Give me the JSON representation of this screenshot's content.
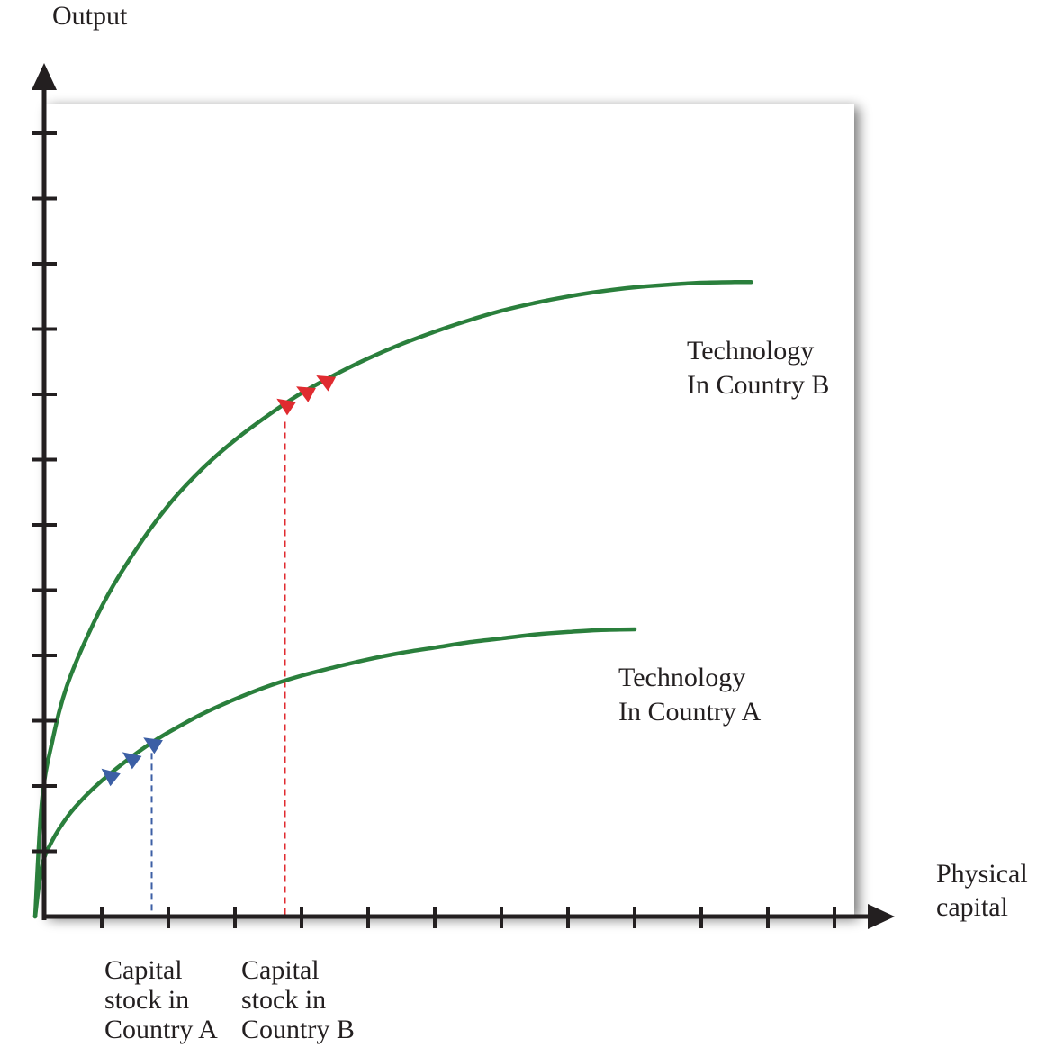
{
  "chart_data": {
    "type": "line",
    "title": "",
    "ylabel": "Output",
    "xlabel": [
      "Physical",
      "capital"
    ],
    "xlim": [
      0,
      12
    ],
    "ylim": [
      0,
      12.5
    ],
    "x_ticks": [
      1,
      2,
      3,
      4,
      5,
      6,
      7,
      8,
      9,
      10,
      11,
      12
    ],
    "y_ticks": [
      1,
      2,
      3,
      4,
      5,
      6,
      7,
      8,
      9,
      10,
      11,
      12
    ],
    "grid": false,
    "series": [
      {
        "name": "Technology In Country A",
        "label_lines": [
          "Technology",
          "In Country A"
        ],
        "color": "#2a7f3c",
        "x": [
          0,
          0.1,
          0.25,
          0.5,
          0.75,
          1,
          1.35,
          1.7,
          2,
          2.5,
          3,
          3.5,
          4,
          4.5,
          5,
          5.5,
          6,
          6.5,
          7,
          7.5,
          8,
          8.5,
          9
        ],
        "y": [
          0,
          0.76,
          1.15,
          1.55,
          1.84,
          2.08,
          2.37,
          2.63,
          2.82,
          3.1,
          3.33,
          3.53,
          3.69,
          3.82,
          3.94,
          4.04,
          4.12,
          4.2,
          4.26,
          4.32,
          4.36,
          4.39,
          4.4
        ]
      },
      {
        "name": "Technology In Country B",
        "label_lines": [
          "Technology",
          "In Country B"
        ],
        "color": "#2a7f3c",
        "x": [
          0,
          0.1,
          0.25,
          0.5,
          1,
          1.5,
          2,
          2.5,
          3,
          3.5,
          4,
          4.5,
          5,
          5.5,
          6,
          6.5,
          7,
          7.5,
          8,
          8.5,
          9,
          9.5,
          10,
          10.5,
          10.75
        ],
        "y": [
          0,
          1.75,
          2.65,
          3.6,
          4.75,
          5.6,
          6.3,
          6.85,
          7.3,
          7.68,
          8.02,
          8.3,
          8.55,
          8.77,
          8.96,
          9.13,
          9.28,
          9.4,
          9.5,
          9.58,
          9.64,
          9.68,
          9.71,
          9.72,
          9.72
        ]
      }
    ],
    "annotations": [
      {
        "label_lines": [
          "Capital",
          "stock in",
          "Country A"
        ],
        "x": 1.75,
        "y": 2.67,
        "color": "#3c5fa5",
        "arrow_direction": "down-left",
        "arrow_count": 3
      },
      {
        "label_lines": [
          "Capital",
          "stock in",
          "Country B"
        ],
        "x": 3.75,
        "y": 7.58,
        "color": "#e02b30",
        "arrow_direction": "down-left",
        "arrow_count": 3
      }
    ]
  }
}
